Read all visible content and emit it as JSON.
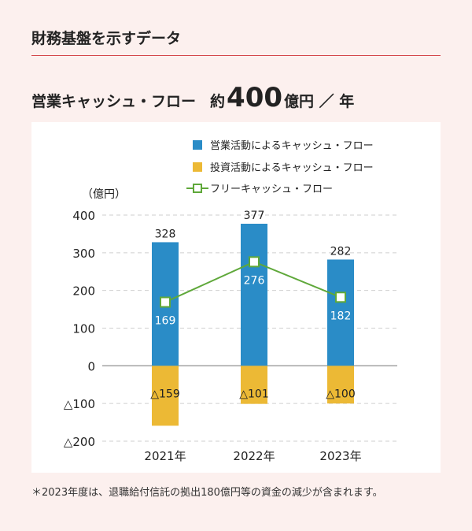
{
  "section_title": "財務基盤を示すデータ",
  "headline": {
    "label": "営業キャッシュ・フロー",
    "prefix": "約",
    "value": "400",
    "unit": "億円 ／ 年"
  },
  "chart_data": {
    "type": "bar",
    "title": "営業キャッシュ・フロー",
    "ylabel": "（億円）",
    "xlabel": "",
    "categories": [
      "2021年",
      "2022年",
      "2023年"
    ],
    "ylim": [
      -200,
      400
    ],
    "yticks": [
      400,
      300,
      200,
      100,
      0,
      -100,
      -200
    ],
    "ytick_labels": [
      "400",
      "300",
      "200",
      "100",
      "0",
      "△100",
      "△200"
    ],
    "grid": true,
    "legend_position": "top-right",
    "series": [
      {
        "name": "営業活動によるキャッシュ・フロー",
        "type": "bar",
        "color": "#2a8cc7",
        "values": [
          328,
          377,
          282
        ],
        "labels": [
          "328",
          "377",
          "282"
        ]
      },
      {
        "name": "投資活動によるキャッシュ・フロー",
        "type": "bar",
        "color": "#ecb935",
        "values": [
          -159,
          -101,
          -100
        ],
        "labels": [
          "△159",
          "△101",
          "△100"
        ]
      },
      {
        "name": "フリーキャッシュ・フロー",
        "type": "line",
        "color": "#5fa83a",
        "values": [
          169,
          276,
          182
        ],
        "labels": [
          "169",
          "276",
          "182"
        ]
      }
    ]
  },
  "footnote": "＊2023年度は、退職給付信託の拠出180億円等の資金の減少が含まれます。"
}
